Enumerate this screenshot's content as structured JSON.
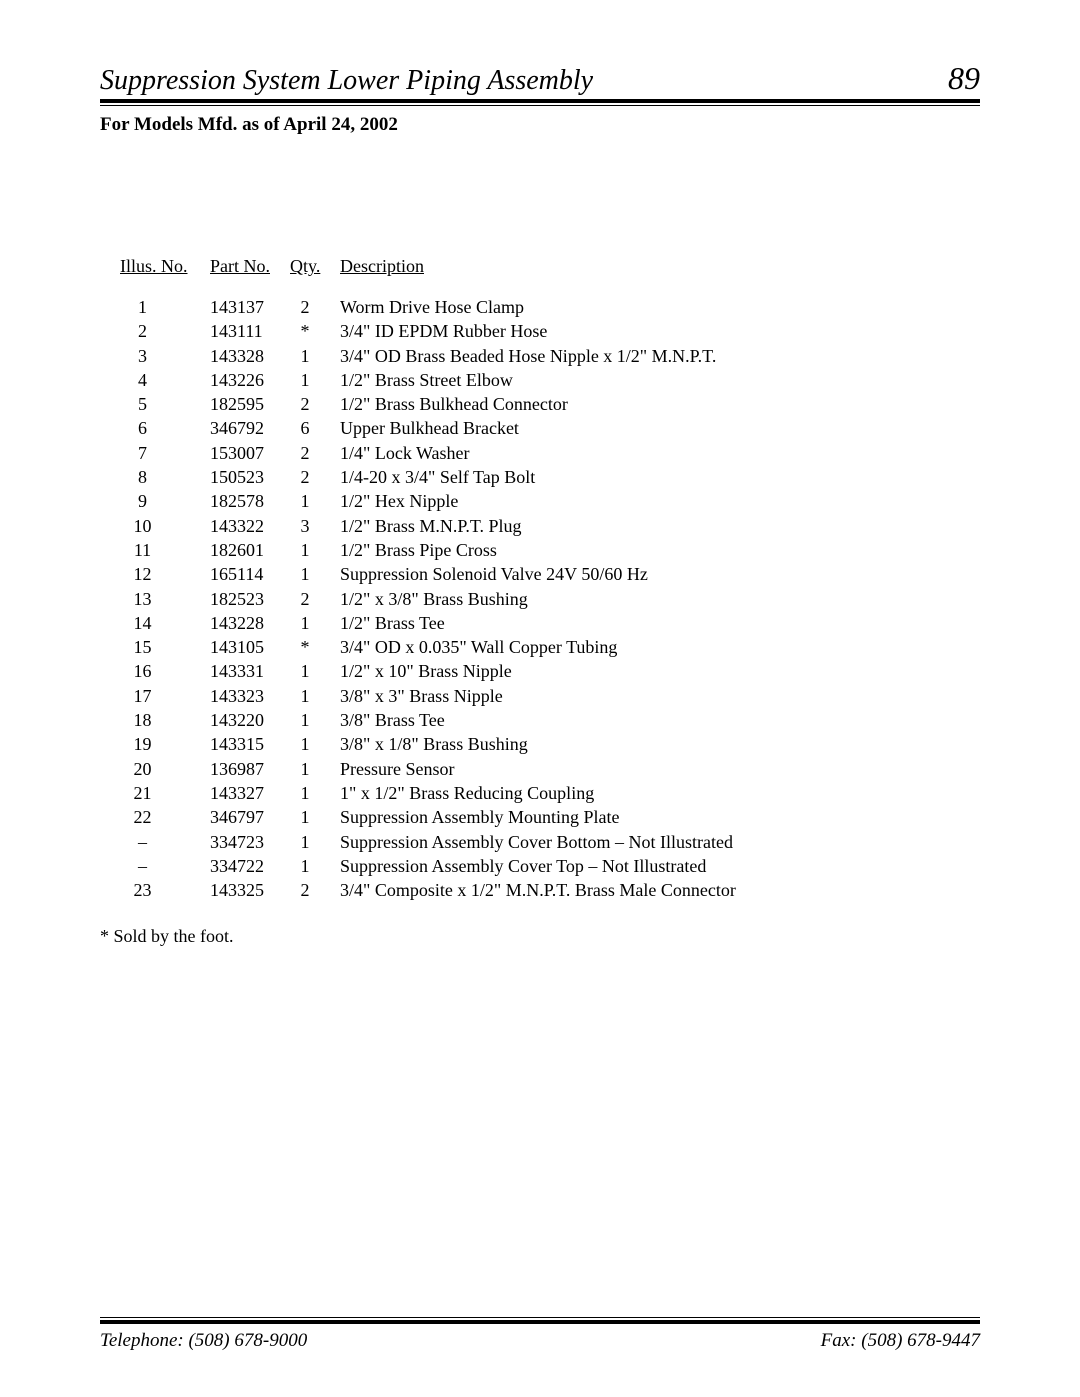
{
  "header": {
    "title": "Suppression System Lower Piping Assembly",
    "page_number": "89"
  },
  "subtitle": "For Models Mfd. as of April 24, 2002",
  "columns": {
    "illus": "Illus. No.",
    "part": "Part No.",
    "qty": "Qty.",
    "desc": "Description"
  },
  "parts": [
    {
      "illus": "1",
      "part": "143137",
      "qty": "2",
      "desc": "Worm Drive Hose Clamp"
    },
    {
      "illus": "2",
      "part": "143111",
      "qty": "*",
      "desc": "3/4\" ID EPDM Rubber Hose"
    },
    {
      "illus": "3",
      "part": "143328",
      "qty": "1",
      "desc": "3/4\" OD Brass Beaded Hose Nipple x 1/2\" M.N.P.T."
    },
    {
      "illus": "4",
      "part": "143226",
      "qty": "1",
      "desc": "1/2\" Brass Street Elbow"
    },
    {
      "illus": "5",
      "part": "182595",
      "qty": "2",
      "desc": "1/2\" Brass Bulkhead Connector"
    },
    {
      "illus": "6",
      "part": "346792",
      "qty": "6",
      "desc": "Upper Bulkhead Bracket"
    },
    {
      "illus": "7",
      "part": "153007",
      "qty": "2",
      "desc": "1/4\" Lock Washer"
    },
    {
      "illus": "8",
      "part": "150523",
      "qty": "2",
      "desc": "1/4-20 x 3/4\" Self Tap Bolt"
    },
    {
      "illus": "9",
      "part": "182578",
      "qty": "1",
      "desc": "1/2\" Hex Nipple"
    },
    {
      "illus": "10",
      "part": "143322",
      "qty": "3",
      "desc": "1/2\" Brass M.N.P.T. Plug"
    },
    {
      "illus": "11",
      "part": "182601",
      "qty": "1",
      "desc": "1/2\" Brass Pipe Cross"
    },
    {
      "illus": "12",
      "part": "165114",
      "qty": "1",
      "desc": "Suppression Solenoid Valve 24V 50/60 Hz"
    },
    {
      "illus": "13",
      "part": "182523",
      "qty": "2",
      "desc": "1/2\" x 3/8\" Brass Bushing"
    },
    {
      "illus": "14",
      "part": "143228",
      "qty": "1",
      "desc": "1/2\" Brass Tee"
    },
    {
      "illus": "15",
      "part": "143105",
      "qty": "*",
      "desc": "3/4\" OD x 0.035\" Wall Copper Tubing"
    },
    {
      "illus": "16",
      "part": "143331",
      "qty": "1",
      "desc": "1/2\" x 10\" Brass Nipple"
    },
    {
      "illus": "17",
      "part": "143323",
      "qty": "1",
      "desc": "3/8\" x 3\" Brass Nipple"
    },
    {
      "illus": "18",
      "part": "143220",
      "qty": "1",
      "desc": "3/8\" Brass Tee"
    },
    {
      "illus": "19",
      "part": "143315",
      "qty": "1",
      "desc": "3/8\" x 1/8\" Brass Bushing"
    },
    {
      "illus": "20",
      "part": "136987",
      "qty": "1",
      "desc": "Pressure Sensor"
    },
    {
      "illus": "21",
      "part": "143327",
      "qty": "1",
      "desc": "1\" x 1/2\" Brass Reducing Coupling"
    },
    {
      "illus": "22",
      "part": "346797",
      "qty": "1",
      "desc": "Suppression Assembly Mounting Plate"
    },
    {
      "illus": "–",
      "part": "334723",
      "qty": "1",
      "desc": "Suppression Assembly Cover Bottom – Not Illustrated"
    },
    {
      "illus": "–",
      "part": "334722",
      "qty": "1",
      "desc": "Suppression Assembly Cover Top – Not Illustrated"
    },
    {
      "illus": "23",
      "part": "143325",
      "qty": "2",
      "desc": "3/4\" Composite x 1/2\" M.N.P.T. Brass Male Connector"
    }
  ],
  "footnote": "*    Sold by the foot.",
  "footer": {
    "telephone": "Telephone: (508) 678-9000",
    "fax": "Fax: (508) 678-9447"
  }
}
